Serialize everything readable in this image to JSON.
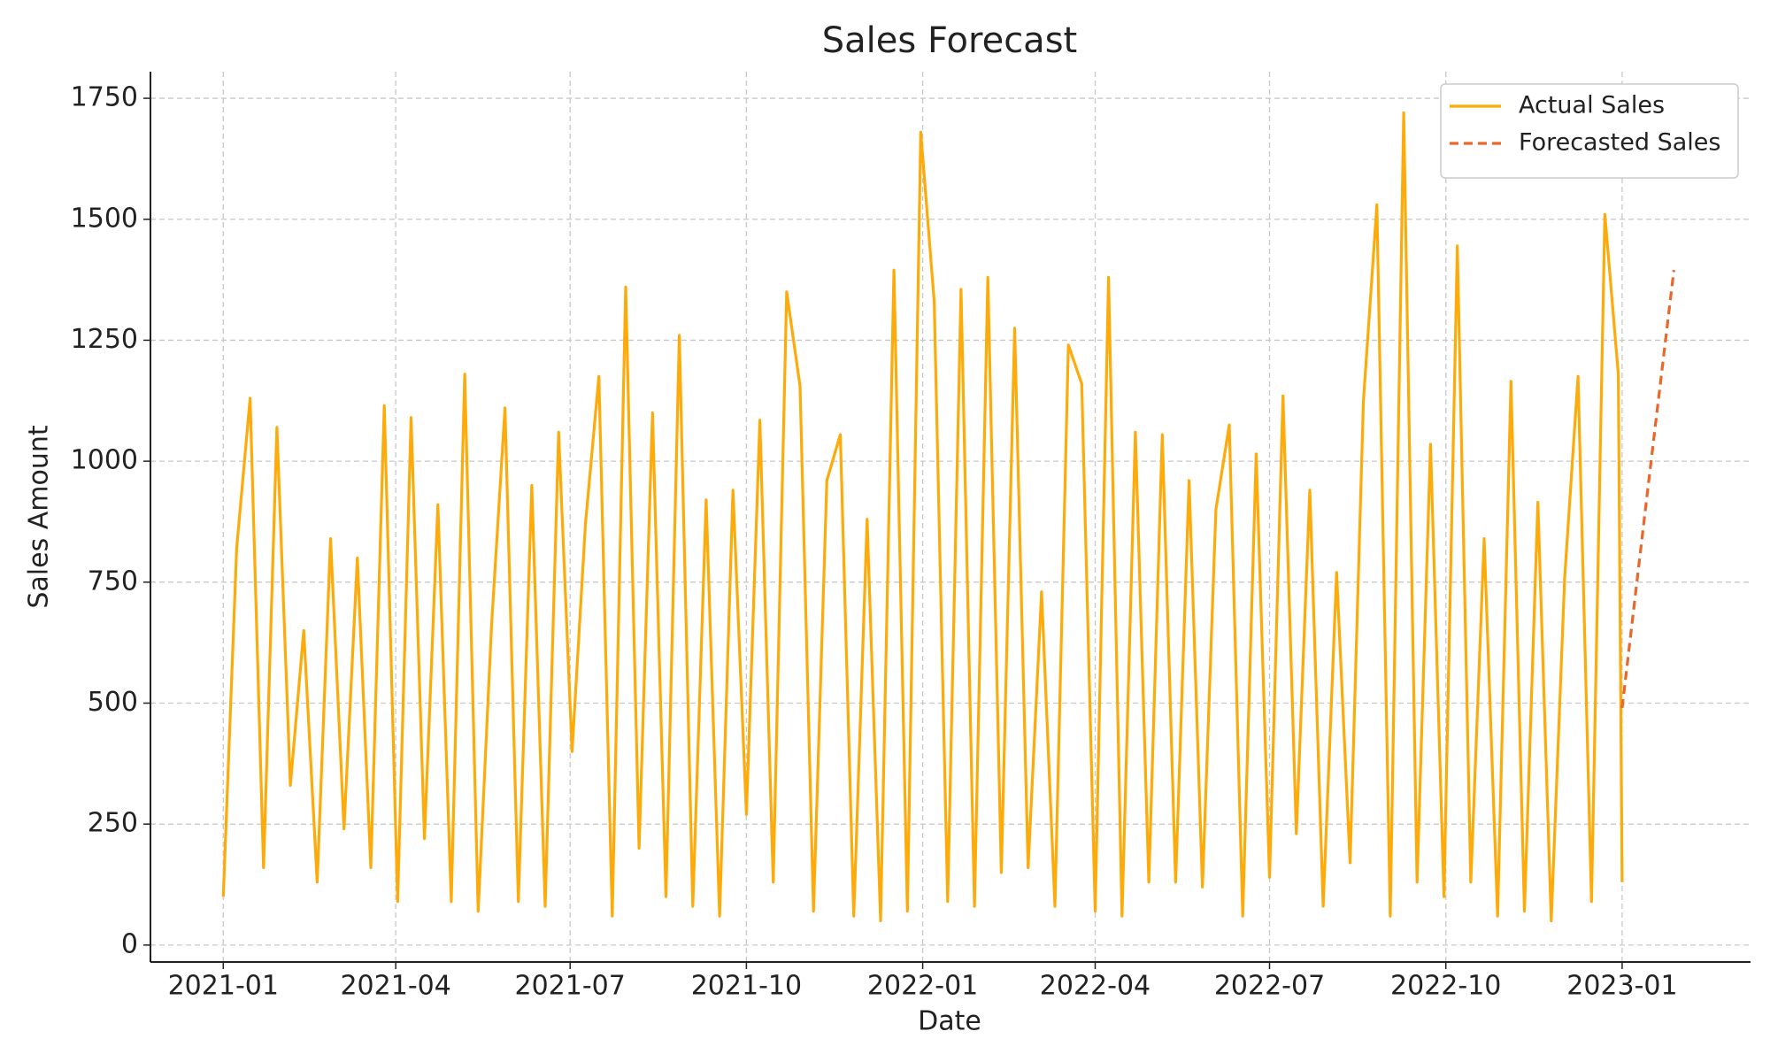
{
  "chart_data": {
    "type": "line",
    "title": "Sales Forecast",
    "x_label": "Date",
    "y_label": "Sales Amount",
    "grid": true,
    "legend": "upper right",
    "xlim": [
      "2020-11-24",
      "2023-03-09"
    ],
    "xticks": [
      "2021-01",
      "2021-04",
      "2021-07",
      "2021-10",
      "2022-01",
      "2022-04",
      "2022-07",
      "2022-10",
      "2023-01"
    ],
    "ylim": [
      -35,
      1805
    ],
    "yticks": [
      0,
      250,
      500,
      750,
      1000,
      1250,
      1500,
      1750
    ],
    "series": [
      {
        "name": "Actual Sales",
        "color": "#fcab0a",
        "style": "solid",
        "x": [
          "2021-01-01",
          "2021-01-08",
          "2021-01-15",
          "2021-01-22",
          "2021-01-29",
          "2021-02-05",
          "2021-02-12",
          "2021-02-19",
          "2021-02-26",
          "2021-03-05",
          "2021-03-12",
          "2021-03-19",
          "2021-03-26",
          "2021-04-02",
          "2021-04-09",
          "2021-04-16",
          "2021-04-23",
          "2021-04-30",
          "2021-05-07",
          "2021-05-14",
          "2021-05-21",
          "2021-05-28",
          "2021-06-04",
          "2021-06-11",
          "2021-06-18",
          "2021-06-25",
          "2021-07-02",
          "2021-07-09",
          "2021-07-16",
          "2021-07-23",
          "2021-07-30",
          "2021-08-06",
          "2021-08-13",
          "2021-08-20",
          "2021-08-27",
          "2021-09-03",
          "2021-09-10",
          "2021-09-17",
          "2021-09-24",
          "2021-10-01",
          "2021-10-08",
          "2021-10-15",
          "2021-10-22",
          "2021-10-29",
          "2021-11-05",
          "2021-11-12",
          "2021-11-19",
          "2021-11-26",
          "2021-12-03",
          "2021-12-10",
          "2021-12-17",
          "2021-12-24",
          "2021-12-31",
          "2022-01-07",
          "2022-01-14",
          "2022-01-21",
          "2022-01-28",
          "2022-02-04",
          "2022-02-11",
          "2022-02-18",
          "2022-02-25",
          "2022-03-04",
          "2022-03-11",
          "2022-03-18",
          "2022-03-25",
          "2022-04-01",
          "2022-04-08",
          "2022-04-15",
          "2022-04-22",
          "2022-04-29",
          "2022-05-06",
          "2022-05-13",
          "2022-05-20",
          "2022-05-27",
          "2022-06-03",
          "2022-06-10",
          "2022-06-17",
          "2022-06-24",
          "2022-07-01",
          "2022-07-08",
          "2022-07-15",
          "2022-07-22",
          "2022-07-29",
          "2022-08-05",
          "2022-08-12",
          "2022-08-19",
          "2022-08-26",
          "2022-09-02",
          "2022-09-09",
          "2022-09-16",
          "2022-09-23",
          "2022-09-30",
          "2022-10-07",
          "2022-10-14",
          "2022-10-21",
          "2022-10-28",
          "2022-11-04",
          "2022-11-11",
          "2022-11-18",
          "2022-11-25",
          "2022-12-02",
          "2022-12-09",
          "2022-12-16",
          "2022-12-23",
          "2022-12-30",
          "2023-01-01"
        ],
        "values": [
          100,
          820,
          1130,
          160,
          1070,
          330,
          650,
          130,
          840,
          240,
          800,
          160,
          1115,
          90,
          1090,
          220,
          910,
          90,
          1180,
          70,
          660,
          1110,
          90,
          950,
          80,
          1060,
          400,
          870,
          1175,
          60,
          1360,
          200,
          1100,
          100,
          1260,
          80,
          920,
          60,
          940,
          270,
          1085,
          130,
          1350,
          1155,
          70,
          960,
          1055,
          60,
          880,
          50,
          1395,
          70,
          1680,
          1330,
          90,
          1355,
          80,
          1380,
          150,
          1275,
          160,
          730,
          80,
          1240,
          1160,
          70,
          1380,
          60,
          1060,
          130,
          1055,
          130,
          960,
          120,
          900,
          1075,
          60,
          1015,
          140,
          1135,
          230,
          940,
          80,
          770,
          170,
          1125,
          1530,
          60,
          1720,
          130,
          1035,
          100,
          1445,
          130,
          840,
          60,
          1165,
          70,
          915,
          50,
          760,
          1175,
          90,
          1510,
          1180,
          130
        ]
      },
      {
        "name": "Forecasted Sales",
        "color": "#e8672a",
        "style": "dashed",
        "x": [
          "2023-01-01",
          "2023-01-14",
          "2023-01-28"
        ],
        "values": [
          490,
          930,
          1395
        ]
      }
    ]
  }
}
